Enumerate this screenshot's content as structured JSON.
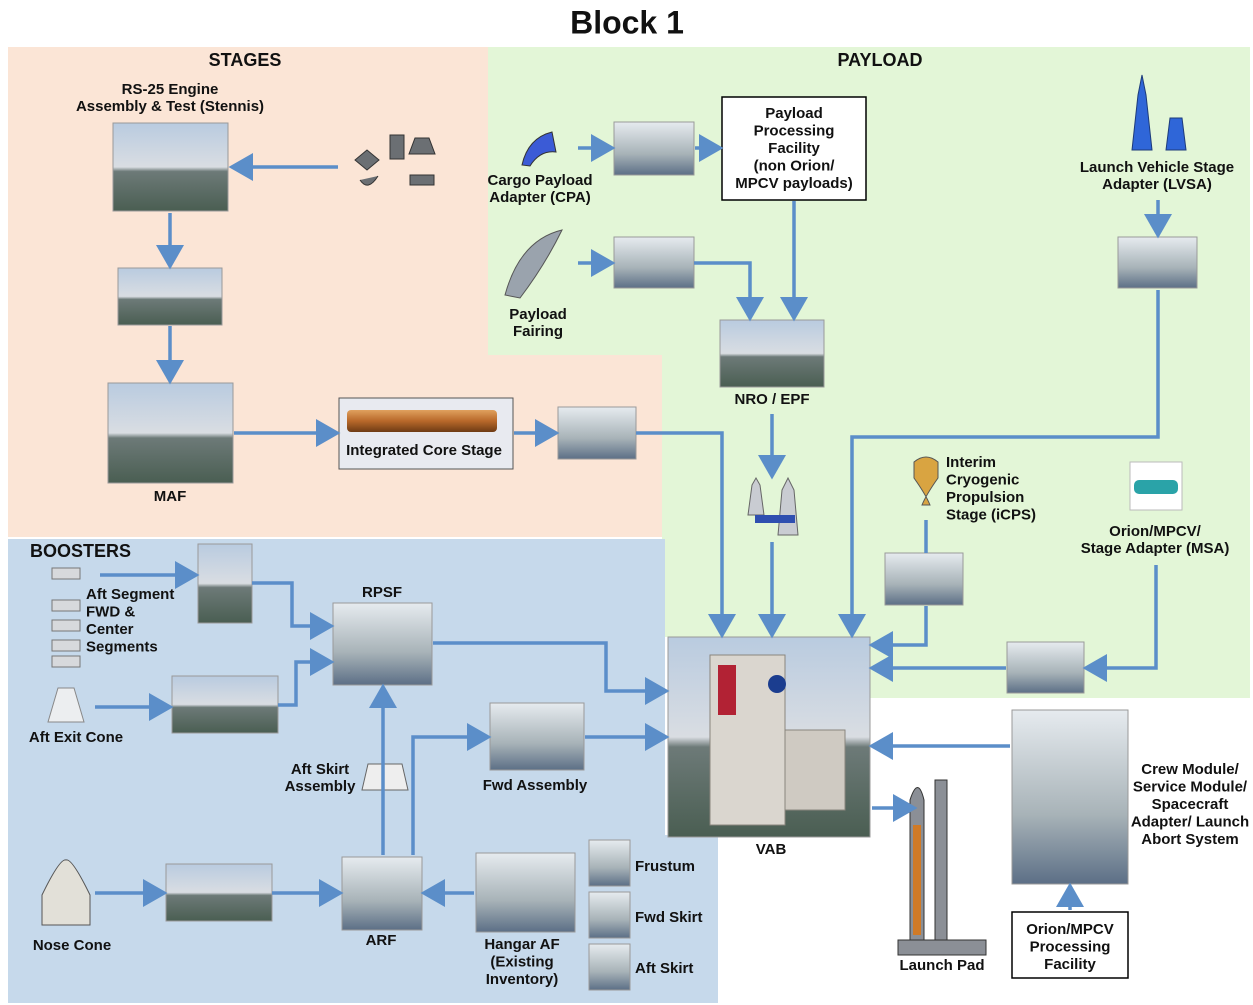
{
  "title": "Block 1",
  "sections": {
    "stages": "STAGES",
    "payload": "PAYLOAD",
    "boosters": "BOOSTERS"
  },
  "nodes": {
    "rs25": [
      "RS-25 Engine",
      "Assembly & Test (Stennis)"
    ],
    "maf": [
      "MAF"
    ],
    "ics": [
      "Integrated Core Stage"
    ],
    "cpa": [
      "Cargo Payload",
      "Adapter (CPA)"
    ],
    "ppf": [
      "Payload",
      "Processing",
      "Facility",
      "(non Orion/",
      "MPCV payloads)"
    ],
    "lvsa": [
      "Launch Vehicle Stage",
      "Adapter (LVSA)"
    ],
    "fairing": [
      "Payload",
      "Fairing"
    ],
    "nro": [
      "NRO / EPF"
    ],
    "icps": [
      "Interim",
      "Cryogenic",
      "Propulsion",
      "Stage (iCPS)"
    ],
    "msa": [
      "Orion/MPCV/",
      "Stage Adapter (MSA)"
    ],
    "segments": [
      "Aft Segment",
      "FWD &",
      "Center",
      "Segments"
    ],
    "rpsf": [
      "RPSF"
    ],
    "exitcone": [
      "Aft Exit Cone"
    ],
    "aftskirtasm": [
      "Aft Skirt",
      "Assembly"
    ],
    "fwdasm": [
      "Fwd Assembly"
    ],
    "vab": [
      "VAB"
    ],
    "crew": [
      "Crew Module/",
      "Service Module/",
      "Spacecraft",
      "Adapter/ Launch",
      "Abort System"
    ],
    "pad": [
      "Launch Pad"
    ],
    "orionfac": [
      "Orion/MPCV",
      "Processing",
      "Facility"
    ],
    "nosecone": [
      "Nose Cone"
    ],
    "arf": [
      "ARF"
    ],
    "hangar": [
      "Hangar AF",
      "(Existing",
      "Inventory)"
    ],
    "frustum": [
      "Frustum"
    ],
    "fwdskirt": [
      "Fwd Skirt"
    ],
    "aftskirt": [
      "Aft Skirt"
    ]
  }
}
